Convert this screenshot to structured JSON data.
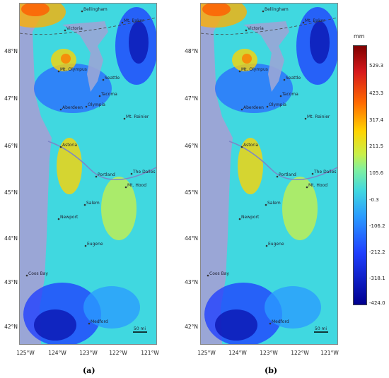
{
  "panels": [
    {
      "id": "a",
      "caption": "(a)"
    },
    {
      "id": "b",
      "caption": "(b)"
    }
  ],
  "latitude_labels": [
    "48°N",
    "47°N",
    "46°N",
    "45°N",
    "44°N",
    "43°N",
    "42°N"
  ],
  "longitude_labels": [
    "125°W",
    "124°W",
    "123°W",
    "122°W",
    "121°W"
  ],
  "places": [
    "Bellingham",
    "Victoria",
    "Mt. Baker",
    "Mt. Olympus",
    "Seattle",
    "Tacoma",
    "Aberdeen",
    "Olympia",
    "Mt. Rainier",
    "Astoria",
    "Portland",
    "The Dalles",
    "Mt. Hood",
    "Salem",
    "Newport",
    "Eugene",
    "Coos Bay",
    "Medford"
  ],
  "scale_bar": "50 mi",
  "colorbar": {
    "unit": "mm",
    "ticks": [
      "529.3",
      "423.3",
      "317.4",
      "211.5",
      "105.6",
      "-0.3",
      "-106.2",
      "-212.2",
      "-318.1",
      "-424.0"
    ],
    "colors": [
      "#7f0000",
      "#ffd400",
      "#40d8e0",
      "#00008f"
    ]
  },
  "colors": {
    "ocean": "#9aa6d6",
    "land_low": "#40d8e0",
    "land_high": "#ffd400",
    "land_wet": "#1f3fff"
  }
}
